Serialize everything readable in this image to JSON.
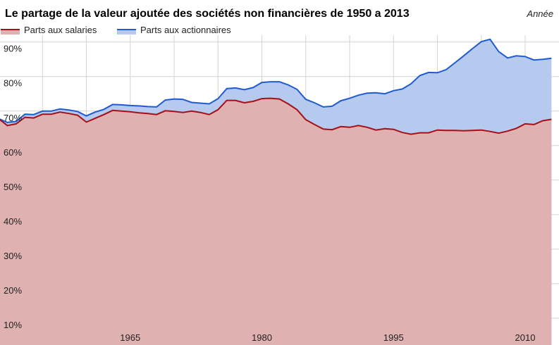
{
  "chart_data": {
    "type": "area",
    "title": "Le partage de la valeur ajoutée des sociétés non financières de 1950 a 2013",
    "xlabel": "Année",
    "ylabel": "",
    "xlim": [
      1950,
      2013
    ],
    "ylim": [
      0,
      92
    ],
    "grid": true,
    "legend_position": "top-left",
    "x_ticks": [
      1965,
      1980,
      1995,
      2010
    ],
    "x_tick_labels": [
      "1965",
      "1980",
      "1995",
      "2010"
    ],
    "y_ticks": [
      10,
      20,
      30,
      40,
      50,
      60,
      70,
      80,
      90
    ],
    "y_tick_labels": [
      "10%",
      "20%",
      "30%",
      "40%",
      "50%",
      "60%",
      "70%",
      "80%",
      "90%"
    ],
    "colors": {
      "salaries_line": "#a50f15",
      "salaries_fill": "#e0b1b1",
      "actionnaires_line": "#1f5bd0",
      "actionnaires_fill": "#b6c9ef",
      "grid": "#d3d3d3"
    },
    "x": [
      1950,
      1951,
      1952,
      1953,
      1954,
      1955,
      1956,
      1957,
      1958,
      1959,
      1960,
      1961,
      1962,
      1963,
      1964,
      1965,
      1966,
      1967,
      1968,
      1969,
      1970,
      1971,
      1972,
      1973,
      1974,
      1975,
      1976,
      1977,
      1978,
      1979,
      1980,
      1981,
      1982,
      1983,
      1984,
      1985,
      1986,
      1987,
      1988,
      1989,
      1990,
      1991,
      1992,
      1993,
      1994,
      1995,
      1996,
      1997,
      1998,
      1999,
      2000,
      2001,
      2002,
      2003,
      2004,
      2005,
      2006,
      2007,
      2008,
      2009,
      2010,
      2011,
      2012,
      2013
    ],
    "series": [
      {
        "name": "Parts aux salaries",
        "values": [
          67.8,
          65.8,
          66.3,
          68.2,
          68.0,
          69.1,
          69.1,
          69.7,
          69.3,
          68.8,
          66.8,
          67.9,
          69.0,
          70.2,
          70.0,
          69.8,
          69.5,
          69.3,
          69.0,
          70.1,
          69.9,
          69.6,
          70.0,
          69.6,
          69.0,
          70.4,
          73.1,
          73.1,
          72.4,
          72.8,
          73.6,
          73.7,
          73.5,
          72.1,
          70.4,
          67.5,
          66.1,
          64.8,
          64.6,
          65.5,
          65.3,
          65.8,
          65.3,
          64.5,
          64.9,
          64.7,
          63.8,
          63.3,
          63.7,
          63.7,
          64.5,
          64.4,
          64.4,
          64.3,
          64.4,
          64.5,
          64.1,
          63.6,
          64.2,
          65.0,
          66.3,
          66.1,
          67.2,
          67.6
        ]
      },
      {
        "name": "Parts aux actionnaires",
        "values": [
          67.8,
          66.7,
          67.0,
          69.1,
          69.0,
          70.0,
          70.0,
          70.6,
          70.3,
          69.9,
          68.6,
          69.7,
          70.5,
          71.9,
          71.8,
          71.6,
          71.5,
          71.3,
          71.2,
          73.2,
          73.5,
          73.4,
          72.5,
          72.3,
          72.1,
          73.6,
          76.5,
          76.7,
          76.2,
          76.8,
          78.3,
          78.5,
          78.5,
          77.6,
          76.3,
          73.4,
          72.4,
          71.2,
          71.4,
          73.0,
          73.7,
          74.6,
          75.2,
          75.3,
          75.0,
          75.9,
          76.4,
          77.9,
          80.3,
          81.2,
          81.1,
          82.0,
          84.0,
          86.0,
          88.1,
          90.1,
          90.8,
          87.2,
          85.4,
          86.0,
          85.8,
          84.8,
          85.0,
          85.3
        ]
      }
    ]
  }
}
